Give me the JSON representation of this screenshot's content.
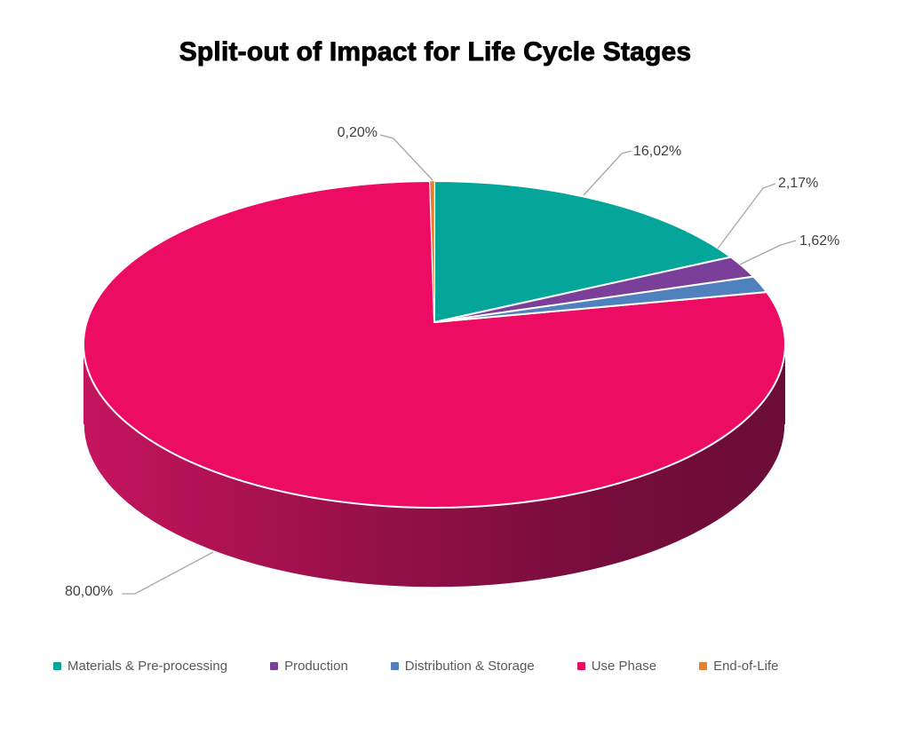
{
  "chart_data": {
    "type": "pie",
    "is_3d": true,
    "title": "Split-out of Impact for Life Cycle Stages",
    "legend_position": "bottom",
    "direction": "clockwise",
    "start_angle_deg": 0,
    "value_format": "0,00%",
    "slices": [
      {
        "label": "Materials & Pre-processing",
        "value": 16.02,
        "pct_label": "16,02%",
        "color": "#04A69A"
      },
      {
        "label": "Production",
        "value": 2.17,
        "pct_label": "2,17%",
        "color": "#7A4099"
      },
      {
        "label": "Distribution & Storage",
        "value": 1.62,
        "pct_label": "1,62%",
        "color": "#4F81BD"
      },
      {
        "label": "Use Phase",
        "value": 80.0,
        "pct_label": "80,00%",
        "color": "#EC0C63",
        "side_color": "#8C0F45"
      },
      {
        "label": "End-of-Life",
        "value": 0.2,
        "pct_label": "0,20%",
        "color": "#E77F2E"
      }
    ]
  },
  "colors": {
    "background": "#FFFFFF",
    "title_text": "#000000",
    "data_label_text": "#3F3F3F",
    "legend_text": "#595959",
    "leader_line": "#A6A6A6",
    "slice_gap_stroke": "#FFFFFF",
    "side_gradient": [
      "#C4155E",
      "#A81150",
      "#8C0F45",
      "#760D3C",
      "#6B0C37"
    ]
  }
}
